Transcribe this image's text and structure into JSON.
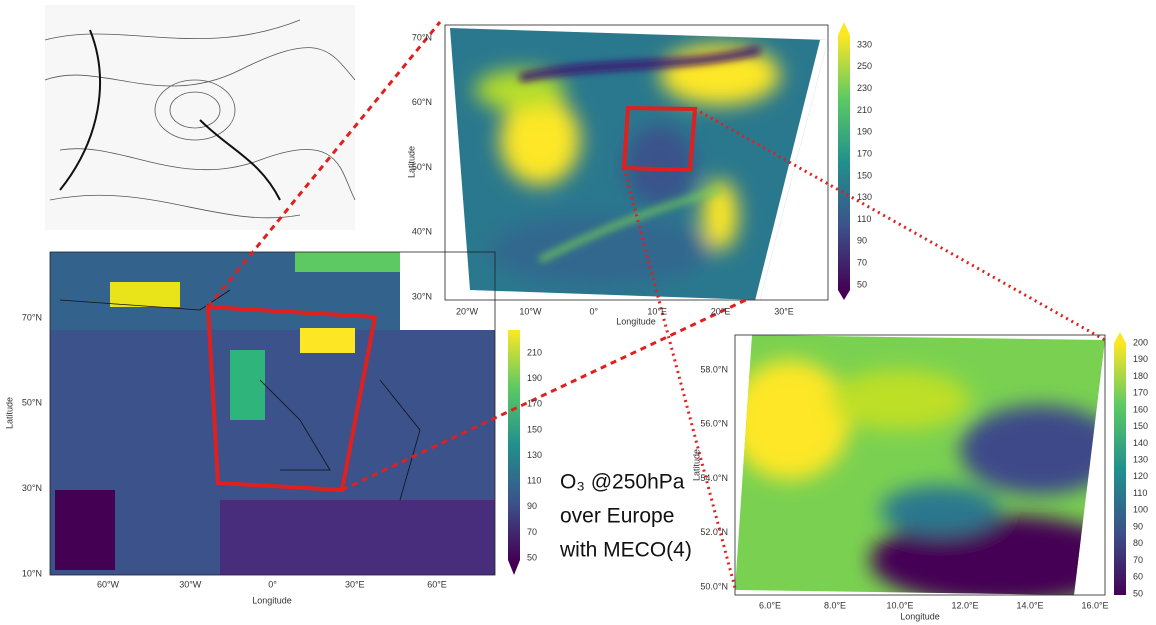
{
  "panels": {
    "global": {
      "x_label": "Longitude",
      "y_label": "Latitude",
      "x_ticks": [
        "60°W",
        "30°W",
        "0°",
        "30°E",
        "60°E"
      ],
      "y_ticks": [
        "70°N",
        "50°N",
        "30°N",
        "10°N"
      ],
      "colorbar": [
        210,
        190,
        170,
        150,
        130,
        110,
        90,
        70,
        50
      ]
    },
    "europe": {
      "x_label": "Longitude",
      "y_label": "Latitude",
      "x_ticks": [
        "20°W",
        "10°W",
        "0°",
        "10°E",
        "20°E",
        "30°E"
      ],
      "y_ticks": [
        "70°N",
        "60°N",
        "50°N",
        "40°N",
        "30°N"
      ],
      "colorbar": [
        330,
        250,
        230,
        210,
        190,
        170,
        150,
        130,
        110,
        90,
        70,
        50
      ]
    },
    "zoom": {
      "x_label": "Longitude",
      "y_label": "Latitude",
      "x_ticks": [
        "6.0°E",
        "8.0°E",
        "10.0°E",
        "12.0°E",
        "14.0°E",
        "16.0°E"
      ],
      "y_ticks": [
        "58.0°N",
        "56.0°N",
        "54.0°N",
        "52.0°N",
        "50.0°N"
      ],
      "colorbar": [
        200,
        190,
        180,
        170,
        160,
        150,
        140,
        130,
        120,
        110,
        100,
        90,
        80,
        70,
        60,
        50
      ]
    }
  },
  "caption": {
    "lines": [
      "O₃ @250hPa",
      "over Europe",
      "with MECO(4)"
    ]
  }
}
